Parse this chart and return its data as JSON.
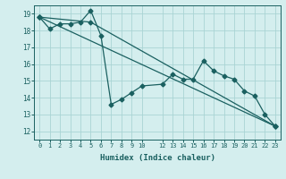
{
  "title": "",
  "xlabel": "Humidex (Indice chaleur)",
  "bg_color": "#d4eeee",
  "grid_color": "#aad4d4",
  "line_color": "#1a6060",
  "xlim": [
    -0.5,
    23.5
  ],
  "ylim": [
    11.5,
    19.5
  ],
  "xticks": [
    0,
    1,
    2,
    3,
    4,
    5,
    6,
    7,
    8,
    9,
    10,
    12,
    13,
    14,
    15,
    16,
    17,
    18,
    19,
    20,
    21,
    22,
    23
  ],
  "yticks": [
    12,
    13,
    14,
    15,
    16,
    17,
    18,
    19
  ],
  "line1_x": [
    0,
    1,
    2,
    3,
    4,
    5,
    6,
    7,
    8,
    9,
    10,
    12,
    13,
    14,
    15,
    16,
    17,
    18,
    19,
    20,
    21,
    22,
    23
  ],
  "line1_y": [
    18.8,
    18.1,
    18.4,
    18.4,
    18.5,
    19.2,
    17.7,
    13.6,
    13.9,
    14.3,
    14.7,
    14.8,
    15.4,
    15.1,
    15.1,
    16.2,
    15.6,
    15.3,
    15.1,
    14.4,
    14.1,
    13.0,
    12.3
  ],
  "line2_x": [
    0,
    23
  ],
  "line2_y": [
    18.8,
    12.3
  ],
  "line3_x": [
    0,
    5,
    23
  ],
  "line3_y": [
    18.8,
    18.5,
    12.3
  ]
}
